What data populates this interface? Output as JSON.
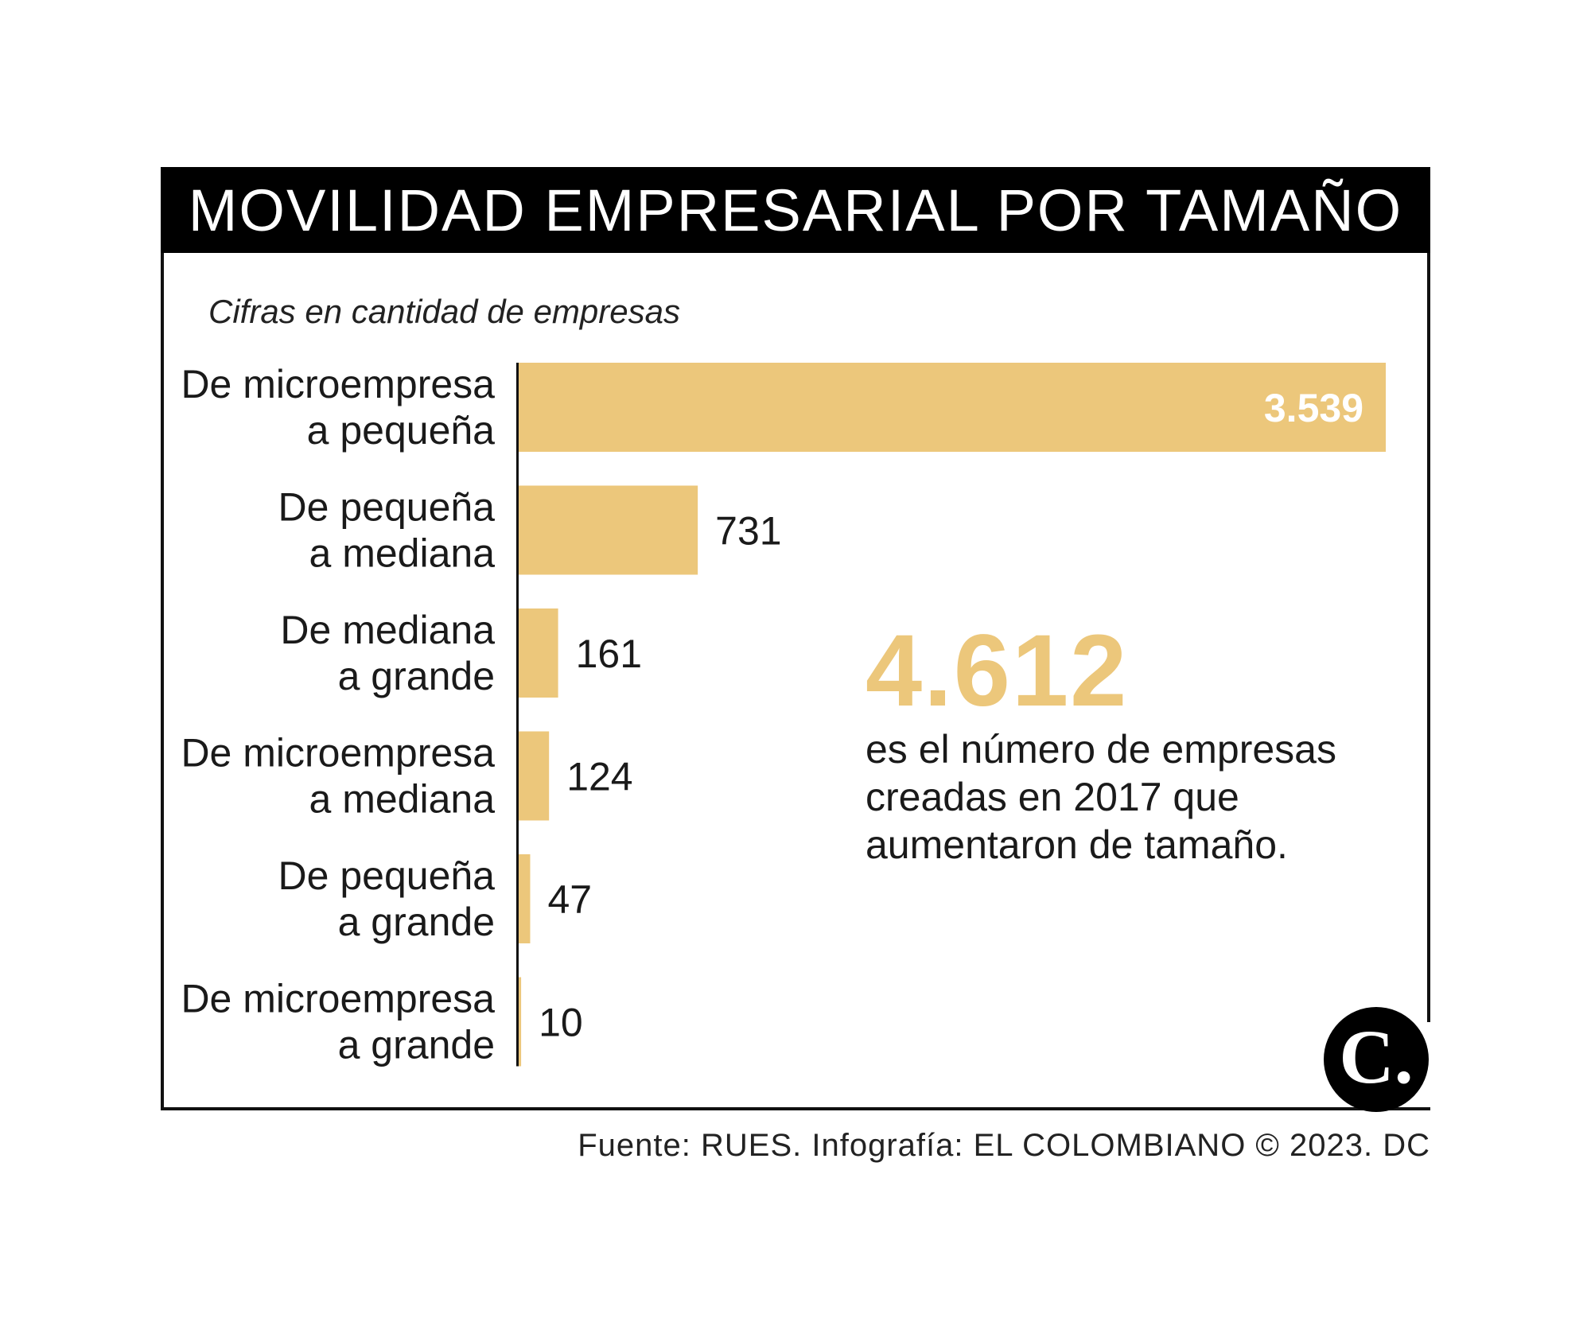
{
  "header": {
    "title": "MOVILIDAD EMPRESARIAL POR TAMAÑO"
  },
  "subtitle": "Cifras en cantidad de empresas",
  "chart_data": {
    "type": "bar",
    "orientation": "horizontal",
    "categories": [
      [
        "De microempresa",
        "a pequeña"
      ],
      [
        "De pequeña",
        "a mediana"
      ],
      [
        "De mediana",
        "a grande"
      ],
      [
        "De microempresa",
        "a mediana"
      ],
      [
        "De pequeña",
        "a grande"
      ],
      [
        "De microempresa",
        "a grande"
      ]
    ],
    "values": [
      3539,
      731,
      161,
      124,
      47,
      10
    ],
    "value_labels": [
      "3.539",
      "731",
      "161",
      "124",
      "47",
      "10"
    ],
    "xlim": [
      0,
      3539
    ],
    "bar_color": "#ecc77b",
    "grid": false
  },
  "highlight": {
    "number": "4.612",
    "caption": "es el número de empresas creadas en 2017 que aumentaron de tamaño."
  },
  "logo": {
    "letter": "C."
  },
  "source": "Fuente: RUES. Infografía: EL COLOMBIANO © 2023. DC"
}
